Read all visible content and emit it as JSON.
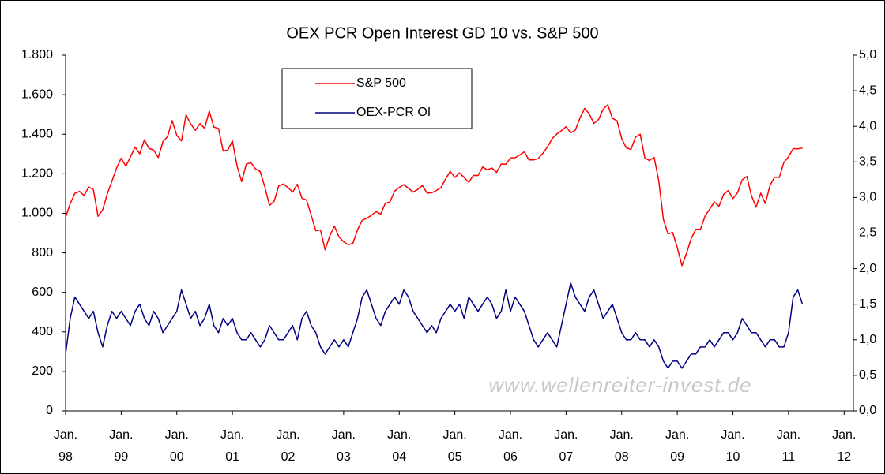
{
  "chart_data": {
    "type": "line",
    "title": "OEX PCR Open Interest GD 10 vs. S&P 500",
    "watermark": "www.wellenreiter-invest.de",
    "x": [
      "1998-01",
      "1998-02",
      "1998-03",
      "1998-04",
      "1998-05",
      "1998-06",
      "1998-07",
      "1998-08",
      "1998-09",
      "1998-10",
      "1998-11",
      "1998-12",
      "1999-01",
      "1999-02",
      "1999-03",
      "1999-04",
      "1999-05",
      "1999-06",
      "1999-07",
      "1999-08",
      "1999-09",
      "1999-10",
      "1999-11",
      "1999-12",
      "2000-01",
      "2000-02",
      "2000-03",
      "2000-04",
      "2000-05",
      "2000-06",
      "2000-07",
      "2000-08",
      "2000-09",
      "2000-10",
      "2000-11",
      "2000-12",
      "2001-01",
      "2001-02",
      "2001-03",
      "2001-04",
      "2001-05",
      "2001-06",
      "2001-07",
      "2001-08",
      "2001-09",
      "2001-10",
      "2001-11",
      "2001-12",
      "2002-01",
      "2002-02",
      "2002-03",
      "2002-04",
      "2002-05",
      "2002-06",
      "2002-07",
      "2002-08",
      "2002-09",
      "2002-10",
      "2002-11",
      "2002-12",
      "2003-01",
      "2003-02",
      "2003-03",
      "2003-04",
      "2003-05",
      "2003-06",
      "2003-07",
      "2003-08",
      "2003-09",
      "2003-10",
      "2003-11",
      "2003-12",
      "2004-01",
      "2004-02",
      "2004-03",
      "2004-04",
      "2004-05",
      "2004-06",
      "2004-07",
      "2004-08",
      "2004-09",
      "2004-10",
      "2004-11",
      "2004-12",
      "2005-01",
      "2005-02",
      "2005-03",
      "2005-04",
      "2005-05",
      "2005-06",
      "2005-07",
      "2005-08",
      "2005-09",
      "2005-10",
      "2005-11",
      "2005-12",
      "2006-01",
      "2006-02",
      "2006-03",
      "2006-04",
      "2006-05",
      "2006-06",
      "2006-07",
      "2006-08",
      "2006-09",
      "2006-10",
      "2006-11",
      "2006-12",
      "2007-01",
      "2007-02",
      "2007-03",
      "2007-04",
      "2007-05",
      "2007-06",
      "2007-07",
      "2007-08",
      "2007-09",
      "2007-10",
      "2007-11",
      "2007-12",
      "2008-01",
      "2008-02",
      "2008-03",
      "2008-04",
      "2008-05",
      "2008-06",
      "2008-07",
      "2008-08",
      "2008-09",
      "2008-10",
      "2008-11",
      "2008-12",
      "2009-01",
      "2009-02",
      "2009-03",
      "2009-04",
      "2009-05",
      "2009-06",
      "2009-07",
      "2009-08",
      "2009-09",
      "2009-10",
      "2009-11",
      "2009-12",
      "2010-01",
      "2010-02",
      "2010-03",
      "2010-04",
      "2010-05",
      "2010-06",
      "2010-07",
      "2010-08",
      "2010-09",
      "2010-10",
      "2010-11",
      "2010-12",
      "2011-01",
      "2011-02",
      "2011-03",
      "2011-04"
    ],
    "series": [
      {
        "name": "S&P 500",
        "color": "#ff0000",
        "values": [
          980,
          1049,
          1101,
          1111,
          1090,
          1133,
          1120,
          985,
          1017,
          1098,
          1163,
          1229,
          1279,
          1238,
          1286,
          1335,
          1301,
          1372,
          1328,
          1320,
          1282,
          1362,
          1388,
          1469,
          1394,
          1366,
          1498,
          1452,
          1420,
          1454,
          1430,
          1517,
          1436,
          1429,
          1315,
          1320,
          1366,
          1240,
          1160,
          1249,
          1256,
          1224,
          1211,
          1133,
          1040,
          1060,
          1139,
          1148,
          1130,
          1107,
          1147,
          1076,
          1067,
          990,
          912,
          916,
          815,
          885,
          936,
          880,
          856,
          841,
          848,
          917,
          964,
          975,
          990,
          1008,
          996,
          1051,
          1058,
          1112,
          1131,
          1145,
          1126,
          1107,
          1121,
          1141,
          1102,
          1104,
          1115,
          1130,
          1174,
          1212,
          1181,
          1204,
          1181,
          1157,
          1192,
          1191,
          1234,
          1220,
          1229,
          1207,
          1249,
          1248,
          1280,
          1281,
          1295,
          1311,
          1270,
          1270,
          1277,
          1304,
          1336,
          1378,
          1401,
          1418,
          1438,
          1407,
          1421,
          1482,
          1531,
          1503,
          1455,
          1474,
          1527,
          1549,
          1481,
          1468,
          1378,
          1331,
          1323,
          1386,
          1400,
          1280,
          1267,
          1283,
          1165,
          969,
          896,
          903,
          826,
          735,
          798,
          873,
          919,
          919,
          987,
          1021,
          1057,
          1036,
          1096,
          1115,
          1074,
          1104,
          1169,
          1187,
          1089,
          1031,
          1102,
          1049,
          1141,
          1183,
          1181,
          1258,
          1286,
          1327,
          1326,
          1330
        ]
      },
      {
        "name": "OEX-PCR OI",
        "color": "#000080",
        "axis": "y2",
        "values": [
          0.8,
          1.3,
          1.6,
          1.5,
          1.4,
          1.3,
          1.4,
          1.1,
          0.9,
          1.2,
          1.4,
          1.3,
          1.4,
          1.3,
          1.2,
          1.4,
          1.5,
          1.3,
          1.2,
          1.4,
          1.3,
          1.1,
          1.2,
          1.3,
          1.4,
          1.7,
          1.5,
          1.3,
          1.4,
          1.2,
          1.3,
          1.5,
          1.2,
          1.1,
          1.3,
          1.2,
          1.3,
          1.1,
          1.0,
          1.0,
          1.1,
          1.0,
          0.9,
          1.0,
          1.2,
          1.1,
          1.0,
          1.0,
          1.1,
          1.2,
          1.0,
          1.3,
          1.4,
          1.2,
          1.1,
          0.9,
          0.8,
          0.9,
          1.0,
          0.9,
          1.0,
          0.9,
          1.1,
          1.3,
          1.6,
          1.7,
          1.5,
          1.3,
          1.2,
          1.4,
          1.5,
          1.6,
          1.5,
          1.7,
          1.6,
          1.4,
          1.3,
          1.2,
          1.1,
          1.2,
          1.1,
          1.3,
          1.4,
          1.5,
          1.4,
          1.5,
          1.3,
          1.6,
          1.5,
          1.4,
          1.5,
          1.6,
          1.5,
          1.3,
          1.4,
          1.7,
          1.4,
          1.6,
          1.5,
          1.4,
          1.2,
          1.0,
          0.9,
          1.0,
          1.1,
          1.0,
          0.9,
          1.2,
          1.5,
          1.8,
          1.6,
          1.5,
          1.4,
          1.6,
          1.7,
          1.5,
          1.3,
          1.4,
          1.5,
          1.3,
          1.1,
          1.0,
          1.0,
          1.1,
          1.0,
          1.0,
          0.9,
          1.0,
          0.9,
          0.7,
          0.6,
          0.7,
          0.7,
          0.6,
          0.7,
          0.8,
          0.8,
          0.9,
          0.9,
          1.0,
          0.9,
          1.0,
          1.1,
          1.1,
          1.0,
          1.1,
          1.3,
          1.2,
          1.1,
          1.1,
          1.0,
          0.9,
          1.0,
          1.0,
          0.9,
          0.9,
          1.1,
          1.6,
          1.7,
          1.5
        ]
      }
    ],
    "xlim": [
      "1998-01",
      "2012-03"
    ],
    "xticks": [
      {
        "value": "1998-01",
        "label": "Jan. 98"
      },
      {
        "value": "1999-01",
        "label": "Jan. 99"
      },
      {
        "value": "2000-01",
        "label": "Jan. 00"
      },
      {
        "value": "2001-01",
        "label": "Jan. 01"
      },
      {
        "value": "2002-01",
        "label": "Jan. 02"
      },
      {
        "value": "2003-01",
        "label": "Jan. 03"
      },
      {
        "value": "2004-01",
        "label": "Jan. 04"
      },
      {
        "value": "2005-01",
        "label": "Jan. 05"
      },
      {
        "value": "2006-01",
        "label": "Jan. 06"
      },
      {
        "value": "2007-01",
        "label": "Jan. 07"
      },
      {
        "value": "2008-01",
        "label": "Jan. 08"
      },
      {
        "value": "2009-01",
        "label": "Jan. 09"
      },
      {
        "value": "2010-01",
        "label": "Jan. 10"
      },
      {
        "value": "2011-01",
        "label": "Jan. 11"
      },
      {
        "value": "2012-01",
        "label": "Jan. 12"
      }
    ],
    "ylim": [
      0,
      1800
    ],
    "yticks": [
      0,
      200,
      400,
      600,
      800,
      {
        "value": 1000,
        "label": "1.000"
      },
      {
        "value": 1200,
        "label": "1.200"
      },
      {
        "value": 1400,
        "label": "1.400"
      },
      {
        "value": 1600,
        "label": "1.600"
      },
      {
        "value": 1800,
        "label": "1.800"
      }
    ],
    "y2lim": [
      0,
      5
    ],
    "y2ticks": [
      {
        "value": 0,
        "label": "0,0"
      },
      {
        "value": 0.5,
        "label": "0,5"
      },
      {
        "value": 1,
        "label": "1,0"
      },
      {
        "value": 1.5,
        "label": "1,5"
      },
      {
        "value": 2,
        "label": "2,0"
      },
      {
        "value": 2.5,
        "label": "2,5"
      },
      {
        "value": 3,
        "label": "3,0"
      },
      {
        "value": 3.5,
        "label": "3,5"
      },
      {
        "value": 4,
        "label": "4,0"
      },
      {
        "value": 4.5,
        "label": "4,5"
      },
      {
        "value": 5,
        "label": "5,0"
      }
    ],
    "grid": false,
    "legend": "top-left"
  }
}
